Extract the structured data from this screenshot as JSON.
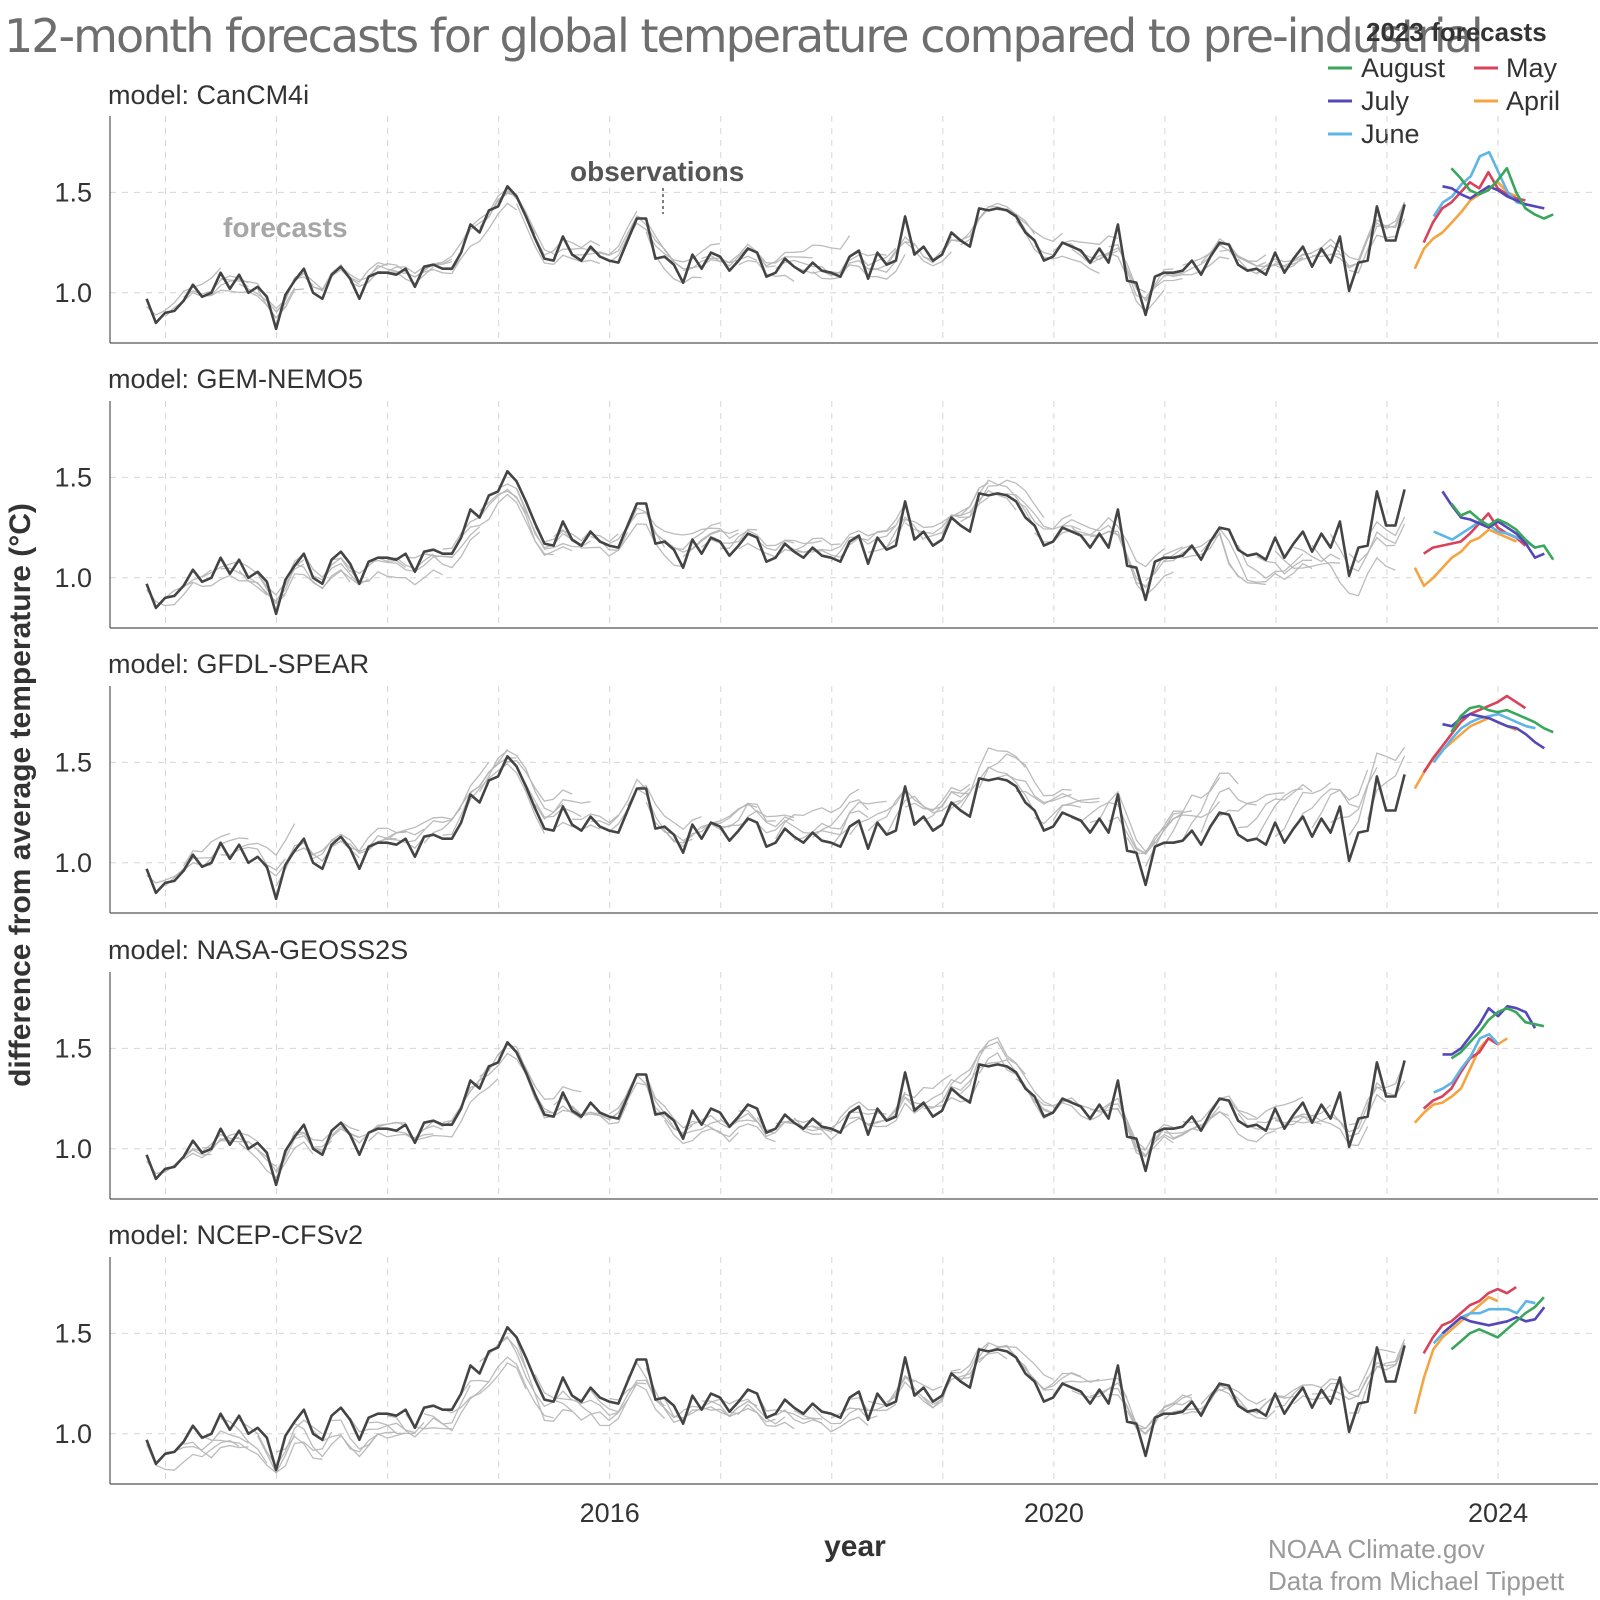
{
  "title": "12-month forecasts for global temperature compared to pre-industrial",
  "legend": {
    "title": "2023 forecasts",
    "items": [
      {
        "label": "August",
        "color": "#3aa65b"
      },
      {
        "label": "May",
        "color": "#d9425b"
      },
      {
        "label": "July",
        "color": "#5447b8"
      },
      {
        "label": "April",
        "color": "#f5a442"
      },
      {
        "label": "June",
        "color": "#5fb4e8"
      }
    ]
  },
  "annotations": {
    "observations": "observations",
    "forecasts": "forecasts"
  },
  "credits": {
    "line1": "NOAA Climate.gov",
    "line2": "Data from Michael Tippett"
  },
  "chart_data": {
    "type": "line",
    "xlabel": "year",
    "ylabel": "difference from average temperature (°C)",
    "x_ticks": [
      2016,
      2020,
      2024
    ],
    "y_ticks": [
      1.0,
      1.5
    ],
    "xlim": [
      2011.5,
      2024.9
    ],
    "ylim": [
      0.75,
      1.88
    ],
    "grid": true,
    "legend_position": "top-right",
    "colors": {
      "observations": "#444444",
      "hindcasts": "#b5b5b5"
    },
    "observations": {
      "start": 2011.83,
      "step": 0.0833,
      "values": [
        0.97,
        0.85,
        0.9,
        0.91,
        0.96,
        1.04,
        0.98,
        1.0,
        1.1,
        1.02,
        1.09,
        1.0,
        1.03,
        0.98,
        0.82,
        0.99,
        1.06,
        1.12,
        1.0,
        0.97,
        1.09,
        1.13,
        1.07,
        0.97,
        1.08,
        1.1,
        1.1,
        1.09,
        1.12,
        1.03,
        1.13,
        1.14,
        1.12,
        1.12,
        1.2,
        1.34,
        1.3,
        1.41,
        1.43,
        1.53,
        1.48,
        1.38,
        1.27,
        1.17,
        1.16,
        1.28,
        1.19,
        1.16,
        1.23,
        1.18,
        1.16,
        1.15,
        1.26,
        1.37,
        1.37,
        1.17,
        1.18,
        1.14,
        1.05,
        1.19,
        1.12,
        1.2,
        1.18,
        1.11,
        1.16,
        1.22,
        1.2,
        1.08,
        1.1,
        1.17,
        1.13,
        1.1,
        1.15,
        1.11,
        1.1,
        1.08,
        1.18,
        1.21,
        1.07,
        1.2,
        1.14,
        1.16,
        1.38,
        1.19,
        1.23,
        1.16,
        1.19,
        1.3,
        1.26,
        1.23,
        1.42,
        1.41,
        1.42,
        1.41,
        1.38,
        1.3,
        1.26,
        1.16,
        1.18,
        1.25,
        1.23,
        1.21,
        1.15,
        1.22,
        1.15,
        1.34,
        1.06,
        1.05,
        0.89,
        1.08,
        1.1,
        1.1,
        1.11,
        1.16,
        1.09,
        1.18,
        1.25,
        1.24,
        1.14,
        1.11,
        1.12,
        1.09,
        1.2,
        1.1,
        1.17,
        1.23,
        1.13,
        1.22,
        1.15,
        1.28,
        1.01,
        1.15,
        1.16,
        1.43,
        1.26,
        1.26,
        1.44
      ]
    },
    "panels": [
      {
        "label": "model: CanCM4i",
        "forecasts_2023": {
          "April": {
            "start": 2023.25,
            "values": [
              1.12,
              1.22,
              1.27,
              1.3,
              1.35,
              1.4,
              1.46,
              1.49,
              1.52,
              1.55,
              1.5,
              1.48
            ]
          },
          "May": {
            "start": 2023.33,
            "values": [
              1.25,
              1.35,
              1.42,
              1.45,
              1.5,
              1.55,
              1.52,
              1.6,
              1.52,
              1.49,
              1.47,
              1.46
            ]
          },
          "June": {
            "start": 2023.42,
            "values": [
              1.38,
              1.45,
              1.48,
              1.54,
              1.58,
              1.68,
              1.7,
              1.6,
              1.5,
              1.45,
              1.44,
              1.43
            ]
          },
          "July": {
            "start": 2023.5,
            "values": [
              1.53,
              1.52,
              1.49,
              1.47,
              1.5,
              1.53,
              1.51,
              1.48,
              1.46,
              1.44,
              1.43,
              1.42
            ]
          },
          "August": {
            "start": 2023.58,
            "values": [
              1.62,
              1.57,
              1.51,
              1.49,
              1.51,
              1.56,
              1.62,
              1.5,
              1.42,
              1.39,
              1.37,
              1.39
            ]
          }
        }
      },
      {
        "label": "model: GEM-NEMO5",
        "forecasts_2023": {
          "April": {
            "start": 2023.25,
            "values": [
              1.05,
              0.96,
              1.0,
              1.05,
              1.1,
              1.13,
              1.18,
              1.2,
              1.24,
              1.22,
              1.2,
              1.18
            ]
          },
          "May": {
            "start": 2023.33,
            "values": [
              1.12,
              1.15,
              1.16,
              1.17,
              1.18,
              1.22,
              1.27,
              1.32,
              1.25,
              1.22,
              1.2,
              1.16
            ]
          },
          "June": {
            "start": 2023.42,
            "values": [
              1.23,
              1.21,
              1.19,
              1.22,
              1.25,
              1.28,
              1.26,
              1.23,
              1.22,
              1.2,
              1.18,
              1.15
            ]
          },
          "July": {
            "start": 2023.5,
            "values": [
              1.43,
              1.36,
              1.3,
              1.29,
              1.27,
              1.25,
              1.28,
              1.25,
              1.22,
              1.17,
              1.1,
              1.12
            ]
          },
          "August": {
            "start": 2023.58,
            "values": [
              1.37,
              1.31,
              1.33,
              1.29,
              1.26,
              1.29,
              1.27,
              1.24,
              1.19,
              1.15,
              1.16,
              1.09
            ]
          }
        }
      },
      {
        "label": "model: GFDL-SPEAR",
        "forecasts_2023": {
          "April": {
            "start": 2023.25,
            "values": [
              1.37,
              1.45,
              1.52,
              1.56,
              1.6,
              1.64,
              1.68,
              1.7,
              1.72,
              1.7,
              1.68,
              1.66
            ]
          },
          "May": {
            "start": 2023.33,
            "values": [
              1.45,
              1.52,
              1.58,
              1.64,
              1.7,
              1.74,
              1.76,
              1.78,
              1.8,
              1.83,
              1.8,
              1.77
            ]
          },
          "June": {
            "start": 2023.42,
            "values": [
              1.5,
              1.56,
              1.62,
              1.67,
              1.7,
              1.72,
              1.73,
              1.74,
              1.72,
              1.7,
              1.68,
              1.67
            ]
          },
          "July": {
            "start": 2023.5,
            "values": [
              1.69,
              1.68,
              1.72,
              1.74,
              1.73,
              1.72,
              1.7,
              1.68,
              1.67,
              1.64,
              1.6,
              1.57
            ]
          },
          "August": {
            "start": 2023.58,
            "values": [
              1.65,
              1.73,
              1.77,
              1.78,
              1.76,
              1.75,
              1.76,
              1.74,
              1.72,
              1.7,
              1.67,
              1.65
            ]
          }
        }
      },
      {
        "label": "model: NASA-GEOSS2S",
        "forecasts_2023": {
          "April": {
            "start": 2023.25,
            "values": [
              1.13,
              1.18,
              1.22,
              1.23,
              1.26,
              1.3,
              1.4,
              1.5,
              1.55,
              1.52,
              1.55
            ]
          },
          "May": {
            "start": 2023.33,
            "values": [
              1.2,
              1.24,
              1.26,
              1.3,
              1.38,
              1.45,
              1.48,
              1.55,
              1.52
            ]
          },
          "June": {
            "start": 2023.42,
            "values": [
              1.28,
              1.3,
              1.33,
              1.4,
              1.46,
              1.55,
              1.57,
              1.52
            ]
          },
          "July": {
            "start": 2023.5,
            "values": [
              1.47,
              1.47,
              1.5,
              1.56,
              1.62,
              1.7,
              1.66,
              1.71,
              1.7,
              1.68,
              1.6
            ]
          },
          "August": {
            "start": 2023.58,
            "values": [
              1.45,
              1.48,
              1.53,
              1.58,
              1.64,
              1.68,
              1.7,
              1.68,
              1.63,
              1.62,
              1.61
            ]
          }
        }
      },
      {
        "label": "model: NCEP-CFSv2",
        "forecasts_2023": {
          "April": {
            "start": 2023.25,
            "values": [
              1.1,
              1.28,
              1.42,
              1.48,
              1.52,
              1.56,
              1.6,
              1.64,
              1.68,
              1.66
            ]
          },
          "May": {
            "start": 2023.33,
            "values": [
              1.4,
              1.48,
              1.54,
              1.56,
              1.6,
              1.64,
              1.66,
              1.7,
              1.72,
              1.7,
              1.73
            ]
          },
          "June": {
            "start": 2023.42,
            "values": [
              1.45,
              1.5,
              1.54,
              1.58,
              1.6,
              1.6,
              1.62,
              1.62,
              1.62,
              1.6,
              1.66,
              1.65
            ]
          },
          "July": {
            "start": 2023.5,
            "values": [
              1.5,
              1.54,
              1.58,
              1.56,
              1.55,
              1.54,
              1.55,
              1.56,
              1.58,
              1.56,
              1.57,
              1.63
            ]
          },
          "August": {
            "start": 2023.58,
            "values": [
              1.42,
              1.46,
              1.5,
              1.52,
              1.5,
              1.48,
              1.52,
              1.56,
              1.6,
              1.63,
              1.68
            ]
          }
        }
      }
    ]
  }
}
